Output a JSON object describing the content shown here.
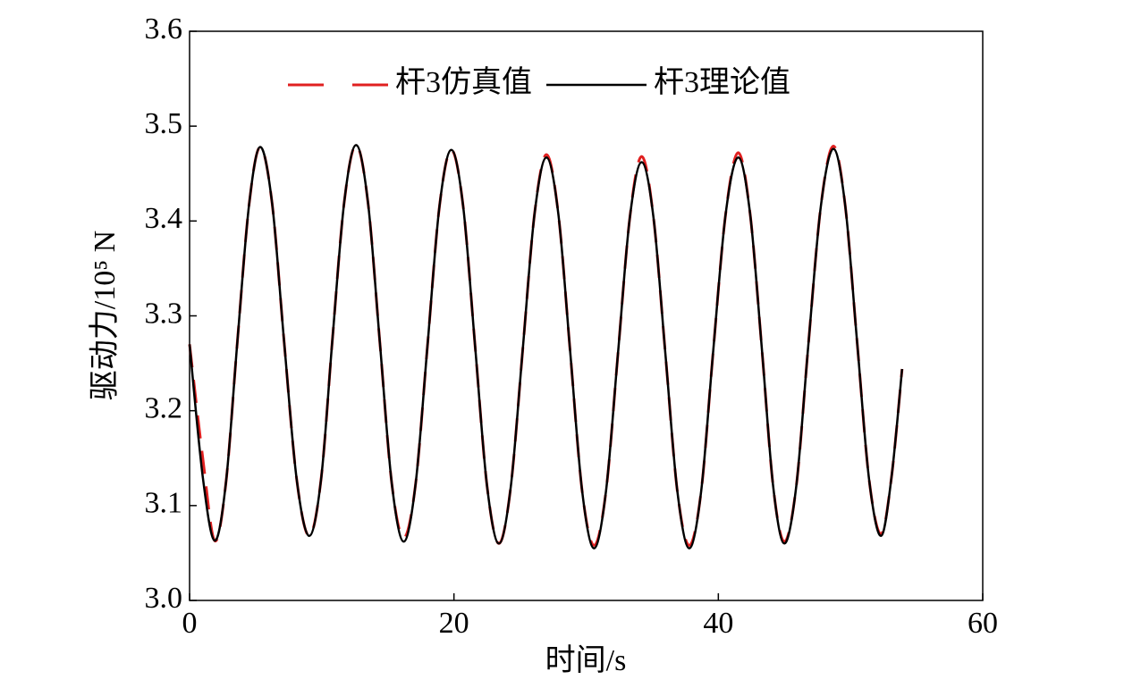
{
  "chart_data": {
    "type": "line",
    "xlabel": "时间/s",
    "ylabel": "驱动力/10⁵ N",
    "x": [
      0,
      1.0,
      1.9,
      2.75,
      3.6,
      4.5,
      5.35,
      6.25,
      7.15,
      8.1,
      9.05,
      9.95,
      10.8,
      11.7,
      12.6,
      13.5,
      14.4,
      15.3,
      16.2,
      17.1,
      18.0,
      18.9,
      19.8,
      20.7,
      21.6,
      22.5,
      23.4,
      24.3,
      25.2,
      26.1,
      27.0,
      27.9,
      28.8,
      29.7,
      30.6,
      31.5,
      32.4,
      33.3,
      34.2,
      35.1,
      36.0,
      36.9,
      37.8,
      38.7,
      39.6,
      40.55,
      41.5,
      42.4,
      43.3,
      44.15,
      45.0,
      45.9,
      46.8,
      47.75,
      48.7,
      49.6,
      50.5,
      51.4,
      52.3,
      53.1,
      53.9
    ],
    "series": [
      {
        "name": "杆3仿真值",
        "color": "#e02020",
        "dash": true,
        "values": [
          3.27,
          3.15,
          3.063,
          3.124,
          3.27,
          3.417,
          3.478,
          3.418,
          3.273,
          3.128,
          3.068,
          3.128,
          3.274,
          3.42,
          3.48,
          3.419,
          3.271,
          3.123,
          3.066,
          3.123,
          3.269,
          3.415,
          3.475,
          3.415,
          3.268,
          3.121,
          3.06,
          3.12,
          3.264,
          3.408,
          3.47,
          3.407,
          3.261,
          3.115,
          3.058,
          3.115,
          3.259,
          3.403,
          3.468,
          3.403,
          3.259,
          3.115,
          3.058,
          3.115,
          3.261,
          3.407,
          3.472,
          3.408,
          3.264,
          3.12,
          3.062,
          3.121,
          3.268,
          3.415,
          3.479,
          3.416,
          3.272,
          3.128,
          3.07,
          3.13,
          3.244
        ]
      },
      {
        "name": "杆3理论值",
        "color": "#000000",
        "dash": false,
        "values": [
          3.27,
          3.13,
          3.063,
          3.124,
          3.27,
          3.417,
          3.478,
          3.418,
          3.273,
          3.128,
          3.068,
          3.128,
          3.274,
          3.42,
          3.48,
          3.419,
          3.271,
          3.123,
          3.062,
          3.123,
          3.269,
          3.415,
          3.475,
          3.415,
          3.268,
          3.121,
          3.06,
          3.12,
          3.264,
          3.408,
          3.467,
          3.407,
          3.261,
          3.115,
          3.055,
          3.115,
          3.259,
          3.403,
          3.462,
          3.403,
          3.259,
          3.115,
          3.055,
          3.115,
          3.261,
          3.407,
          3.467,
          3.408,
          3.264,
          3.12,
          3.06,
          3.121,
          3.268,
          3.415,
          3.476,
          3.416,
          3.272,
          3.128,
          3.068,
          3.13,
          3.244
        ]
      }
    ],
    "xlim": [
      0,
      60
    ],
    "xticks": [
      0,
      20,
      40,
      60
    ],
    "ylim": [
      3.0,
      3.6
    ],
    "yticks": [
      {
        "value": 3.0,
        "label": "3.0"
      },
      3.1,
      3.2,
      3.3,
      3.4,
      3.5,
      3.6
    ],
    "legend": "top"
  }
}
